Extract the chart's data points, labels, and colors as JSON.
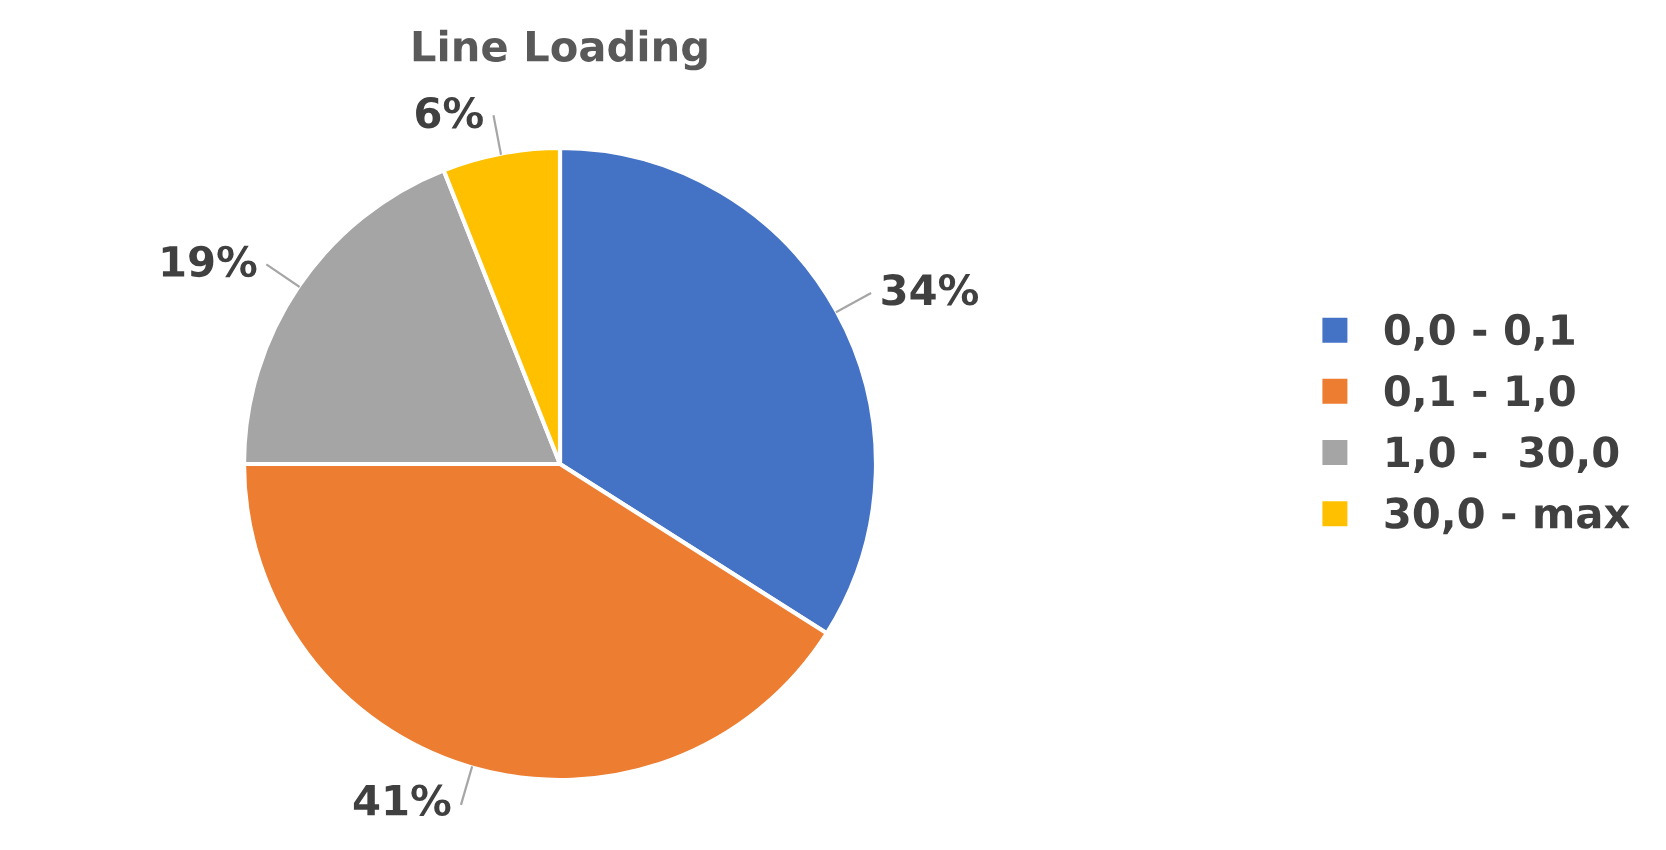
{
  "chart_data": {
    "type": "pie",
    "title": "Line Loading",
    "categories": [
      "0,0 - 0,1",
      "0,1 - 1,0",
      "1,0 -  30,0",
      "30,0 - max"
    ],
    "values": [
      34,
      41,
      19,
      6
    ],
    "value_labels": [
      "34%",
      "41%",
      "19%",
      "6%"
    ],
    "colors": [
      "#4472c4",
      "#ed7d31",
      "#a5a5a5",
      "#ffc000"
    ],
    "legend": "right"
  }
}
